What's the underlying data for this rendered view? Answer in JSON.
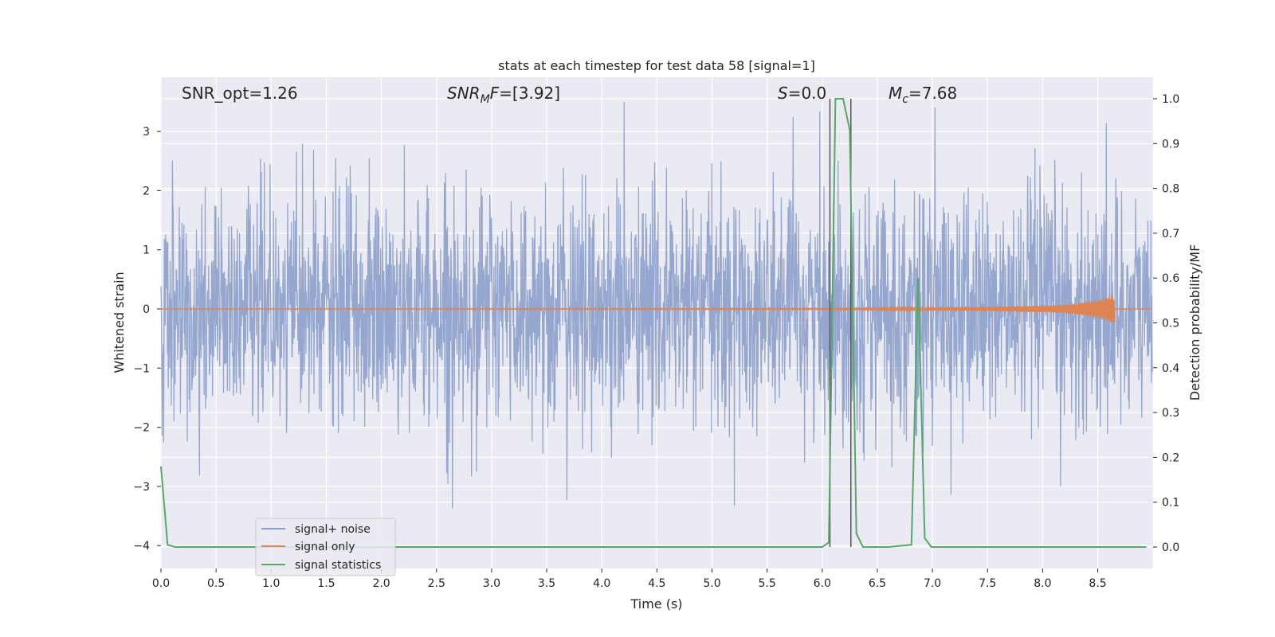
{
  "chart_data": {
    "type": "line",
    "title": "stats at each timestep for test data 58 [signal=1]",
    "xlabel": "Time (s)",
    "ylabel_left": "Whitened strain",
    "ylabel_right": "Detection probability/MF",
    "xlim": [
      0.0,
      9.0
    ],
    "ylim_left": [
      -4.35,
      3.9
    ],
    "ylim_right": [
      -0.047,
      1.047
    ],
    "x_ticks": [
      "0.0",
      "0.5",
      "1.0",
      "1.5",
      "2.0",
      "2.5",
      "3.0",
      "3.5",
      "4.0",
      "4.5",
      "5.0",
      "5.5",
      "6.0",
      "6.5",
      "7.0",
      "7.5",
      "8.0",
      "8.5"
    ],
    "y_ticks_left": [
      "3",
      "2",
      "1",
      "0",
      "−1",
      "−2",
      "−3",
      "−4"
    ],
    "y_ticks_right": [
      "1.0",
      "0.9",
      "0.8",
      "0.7",
      "0.6",
      "0.5",
      "0.4",
      "0.3",
      "0.2",
      "0.1",
      "0.0"
    ],
    "grid": true,
    "legend_position": "lower-left",
    "annotations": {
      "snr_opt": "SNR_opt=1.26",
      "snr_mf_italic": "SNR",
      "snr_mf_sub": "M",
      "snr_mf_italic2": "F",
      "snr_mf_value": "=[3.92]",
      "s_italic": "S",
      "s_value": "=0.0",
      "mc_italic": "M",
      "mc_sub": "c",
      "mc_value": "=7.68"
    },
    "vertical_lines_x": [
      6.07,
      6.26
    ],
    "series": [
      {
        "name": "signal+ noise",
        "axis": "left",
        "color": "#8c9fcb",
        "description": "Gaussian-like noise spanning roughly -4 to 3.5 across the full time range"
      },
      {
        "name": "signal only",
        "axis": "left",
        "color": "#dd8452",
        "description": "chirp waveform near 0 growing in amplitude until ~8.65 s",
        "envelope": {
          "x": [
            0.0,
            6.0,
            7.5,
            8.2,
            8.5,
            8.6,
            8.65
          ],
          "amp": [
            0.005,
            0.01,
            0.03,
            0.07,
            0.15,
            0.22,
            0.25
          ]
        }
      },
      {
        "name": "signal statistics",
        "axis": "right",
        "color": "#55a868",
        "x": [
          0.0,
          0.06,
          0.13,
          0.5,
          1.0,
          2.0,
          3.0,
          4.0,
          5.0,
          6.0,
          6.06,
          6.12,
          6.19,
          6.25,
          6.31,
          6.37,
          6.5,
          6.6,
          6.81,
          6.87,
          6.93,
          6.99,
          7.5,
          8.0,
          8.5,
          8.94
        ],
        "y": [
          0.18,
          0.005,
          0.0,
          0.0,
          0.0,
          0.0,
          0.0,
          0.0,
          0.0,
          0.0,
          0.01,
          1.0,
          1.0,
          0.93,
          0.03,
          0.0,
          0.0,
          0.0,
          0.005,
          0.6,
          0.02,
          0.0,
          0.0,
          0.0,
          0.0,
          0.0
        ]
      }
    ]
  }
}
